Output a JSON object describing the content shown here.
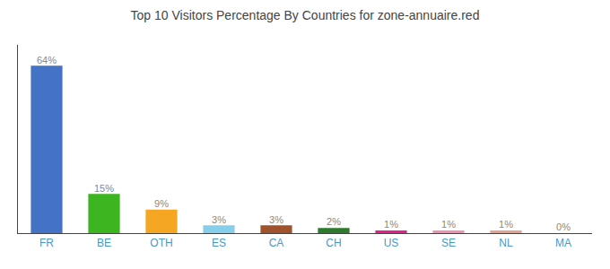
{
  "chart_data": {
    "type": "bar",
    "title": "Top 10 Visitors Percentage By Countries for zone-annuaire.red",
    "categories": [
      "FR",
      "BE",
      "OTH",
      "ES",
      "CA",
      "CH",
      "US",
      "SE",
      "NL",
      "MA"
    ],
    "values": [
      64,
      15,
      9,
      3,
      3,
      2,
      1,
      1,
      1,
      0
    ],
    "value_labels": [
      "64%",
      "15%",
      "9%",
      "3%",
      "3%",
      "2%",
      "1%",
      "1%",
      "1%",
      "0%"
    ],
    "colors": [
      "#4472c4",
      "#3cb521",
      "#f5a623",
      "#87ceeb",
      "#a0522d",
      "#2d7a2d",
      "#e91e8c",
      "#f48fb1",
      "#e8a090",
      "#f06292"
    ],
    "ylim": [
      0,
      72
    ],
    "data_labels": true,
    "tick_labels": "x",
    "grid": false
  }
}
